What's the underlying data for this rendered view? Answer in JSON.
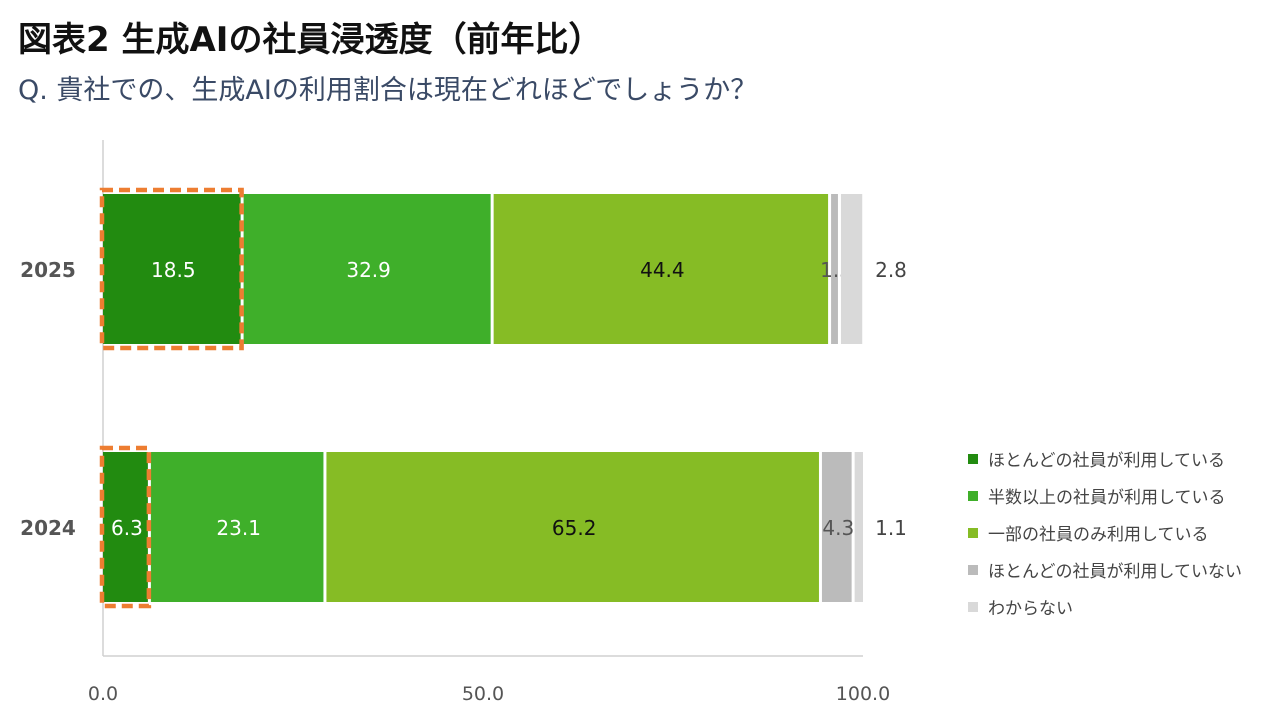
{
  "header": {
    "title": "図表2 生成AIの社員浸透度（前年比）",
    "subtitle": "Q. 貴社での、生成AIの利用割合は現在どれほどでしょうか？"
  },
  "chart_data": {
    "type": "bar",
    "orientation": "horizontal",
    "stacked": true,
    "categories": [
      "2025",
      "2024"
    ],
    "series": [
      {
        "name": "ほとんどの社員が利用している",
        "color": "#228B10",
        "label_color": "#ffffff",
        "values": [
          18.5,
          6.3
        ]
      },
      {
        "name": "半数以上の社員が利用している",
        "color": "#3FAF2A",
        "label_color": "#ffffff",
        "values": [
          32.9,
          23.1
        ]
      },
      {
        "name": "一部の社員のみ利用している",
        "color": "#86BC25",
        "label_color": "#111111",
        "values": [
          44.4,
          65.2
        ]
      },
      {
        "name": "ほとんどの社員が利用していない",
        "color": "#BBBBBB",
        "label_color": "#555555",
        "values": [
          1.3,
          4.3
        ]
      },
      {
        "name": "わからない",
        "color": "#D9D9D9",
        "label_color": "#444444",
        "values": [
          2.8,
          1.1
        ]
      }
    ],
    "xlim": [
      0,
      100
    ],
    "x_ticks": [
      "0.0",
      "50.0",
      "100.0"
    ],
    "highlight": {
      "series": "ほとんどの社員が利用している",
      "style": "dashed-outline",
      "color": "#ED7D31"
    },
    "legend_position": "right",
    "grid": false
  }
}
